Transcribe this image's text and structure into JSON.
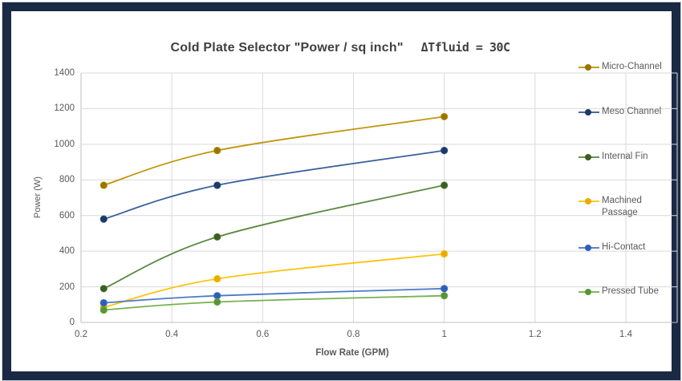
{
  "frame": {
    "border_color": "#1A2A45"
  },
  "chart_data": {
    "type": "line",
    "smooth": true,
    "title_main": "Cold Plate Selector  \"Power / sq inch\"",
    "title_delta": "ΔTfluid = 30C",
    "xlabel": "Flow Rate (GPM)",
    "ylabel": "Power (W)",
    "x": [
      0.25,
      0.5,
      1
    ],
    "series": [
      {
        "name": "Micro-Channel",
        "color": "#BF8F00",
        "marker_color": "#997500",
        "values": [
          770,
          965,
          1155
        ]
      },
      {
        "name": "Meso Channel",
        "color": "#2F5597",
        "marker_color": "#1F3864",
        "values": [
          580,
          770,
          965
        ]
      },
      {
        "name": "Internal Fin",
        "color": "#548235",
        "marker_color": "#3B5E23",
        "values": [
          190,
          480,
          770
        ]
      },
      {
        "name": "Machined Passage",
        "color": "#FFC000",
        "marker_color": "#E8AC00",
        "values": [
          85,
          245,
          385
        ]
      },
      {
        "name": "Hi-Contact",
        "color": "#4472C4",
        "marker_color": "#2E5EB8",
        "values": [
          110,
          150,
          190
        ]
      },
      {
        "name": "Pressed Tube",
        "color": "#70AD47",
        "marker_color": "#579636",
        "values": [
          70,
          115,
          150
        ]
      }
    ],
    "xlim": [
      0.2,
      1.4
    ],
    "ylim": [
      0,
      1400
    ],
    "x_ticks": [
      "0.2",
      "0.4",
      "0.6",
      "0.8",
      "1",
      "1.2",
      "1.4"
    ],
    "y_ticks": [
      "0",
      "200",
      "400",
      "600",
      "800",
      "1000",
      "1200",
      "1400"
    ],
    "grid": true,
    "legend_position": "right",
    "gridline_color": "#D9D9D9",
    "axis_line_color": "#BFBFBF",
    "text_color": "#595959",
    "title_color": "#404040"
  }
}
